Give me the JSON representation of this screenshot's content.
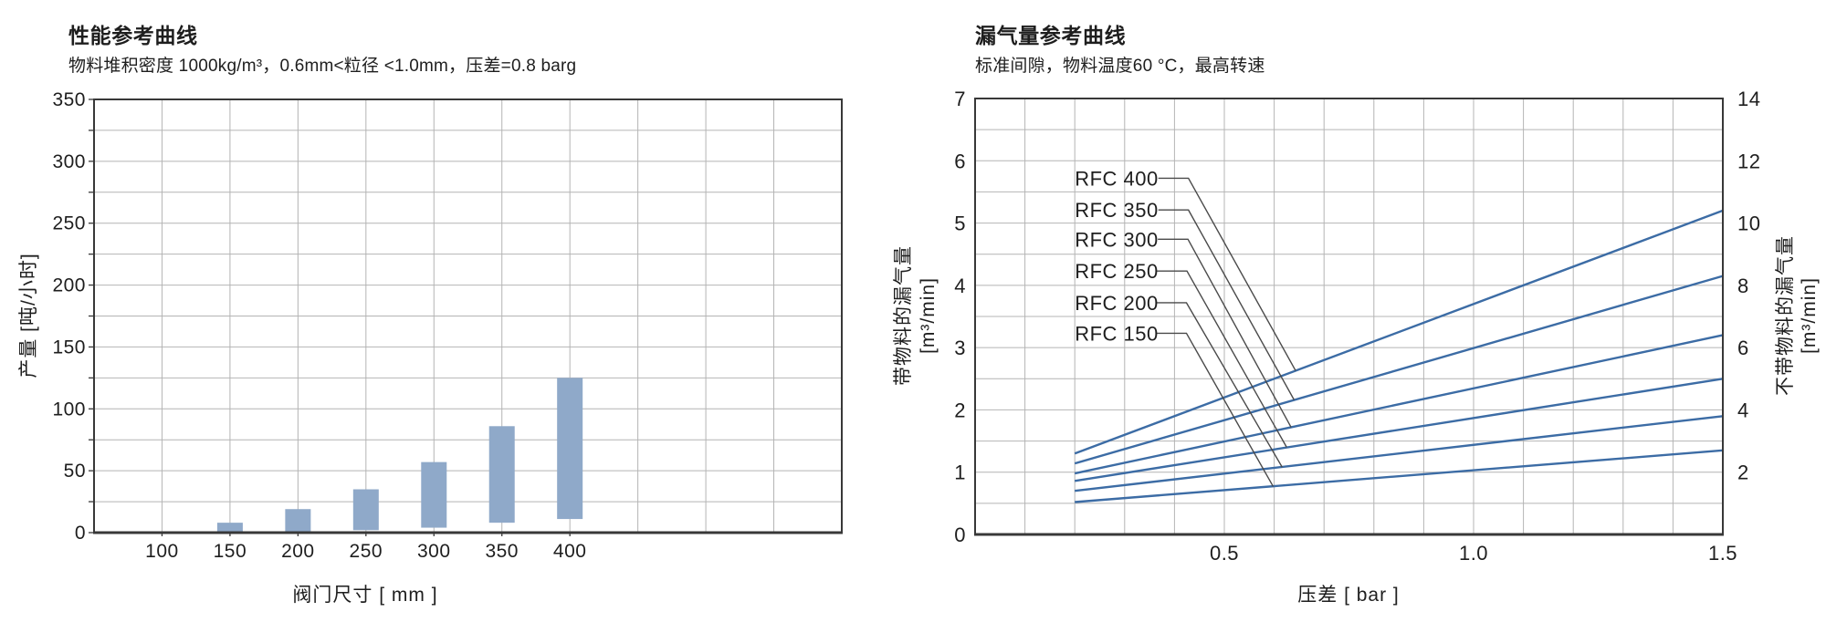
{
  "page": {
    "background": "#ffffff"
  },
  "colors": {
    "bar": "#8fa9c9",
    "curve": "#3c6ca5",
    "grid": "#b4b4b4",
    "axis": "#383838",
    "leader": "#4a4a4a",
    "text": "#1e1e1e"
  },
  "chart_data": [
    {
      "type": "bar",
      "title": "性能参考曲线",
      "subtitle": "物料堆积密度 1000kg/m³，0.6mm<粒径 <1.0mm，压差=0.8 barg",
      "xlabel": "阀门尺寸 [ mm ]",
      "ylabel": "产量 [吨/小时]",
      "x_ticks": [
        100,
        150,
        200,
        250,
        300,
        350,
        400
      ],
      "x_grid_extra": 4,
      "ylim": [
        0,
        350
      ],
      "y_ticks": [
        0,
        50,
        100,
        150,
        200,
        250,
        300,
        350
      ],
      "y_minor_step": 25,
      "grid_on": true,
      "bars": [
        {
          "x": 150,
          "min": 0.5,
          "max": 8
        },
        {
          "x": 200,
          "min": 1,
          "max": 19
        },
        {
          "x": 250,
          "min": 2,
          "max": 35
        },
        {
          "x": 300,
          "min": 4,
          "max": 57
        },
        {
          "x": 350,
          "min": 8,
          "max": 86
        },
        {
          "x": 400,
          "min": 11,
          "max": 125
        }
      ],
      "bar_value_unit": "吨/小时"
    },
    {
      "type": "line",
      "title": "漏气量参考曲线",
      "subtitle": "标准间隙，物料温度60 °C，最高转速",
      "xlabel": "压差 [ bar ]",
      "ylabel_left": "带物料的漏气量",
      "ylabel_left_unit": "[m³/min]",
      "ylabel_right": "不带物料的漏气量",
      "ylabel_right_unit": "[m³/min]",
      "xlim": [
        0,
        1.5
      ],
      "x_minor_step": 0.1,
      "x_ticks": [
        {
          "v": 0.5,
          "label": "0.5"
        },
        {
          "v": 1.0,
          "label": "1.0"
        },
        {
          "v": 1.5,
          "label": "1.5"
        }
      ],
      "ylim_left": [
        0,
        7
      ],
      "y_ticks_left": [
        0,
        1,
        2,
        3,
        4,
        5,
        6,
        7
      ],
      "ylim_right": [
        0,
        14
      ],
      "y_ticks_right": [
        2,
        4,
        6,
        8,
        10,
        12,
        14
      ],
      "y_minor_step": 0.5,
      "grid_on": true,
      "legend_position": "inside-top-left",
      "series": [
        {
          "name": "RFC 400",
          "points": [
            [
              0.2,
              1.3
            ],
            [
              1.5,
              5.2
            ]
          ],
          "label_y": 5.72,
          "elbow": [
            0.428,
            5.72
          ],
          "end": [
            0.643,
            2.63
          ]
        },
        {
          "name": "RFC 350",
          "points": [
            [
              0.2,
              1.14
            ],
            [
              1.5,
              4.15
            ]
          ],
          "label_y": 5.21,
          "elbow": [
            0.428,
            5.21
          ],
          "end": [
            0.64,
            2.16
          ]
        },
        {
          "name": "RFC 300",
          "points": [
            [
              0.2,
              0.98
            ],
            [
              1.5,
              3.2
            ]
          ],
          "label_y": 4.74,
          "elbow": [
            0.427,
            4.74
          ],
          "end": [
            0.634,
            1.72
          ]
        },
        {
          "name": "RFC 250",
          "points": [
            [
              0.2,
              0.86
            ],
            [
              1.5,
              2.5
            ]
          ],
          "label_y": 4.23,
          "elbow": [
            0.425,
            4.23
          ],
          "end": [
            0.625,
            1.4
          ]
        },
        {
          "name": "RFC 200",
          "points": [
            [
              0.2,
              0.7
            ],
            [
              1.5,
              1.9
            ]
          ],
          "label_y": 3.72,
          "elbow": [
            0.424,
            3.72
          ],
          "end": [
            0.616,
            1.08
          ]
        },
        {
          "name": "RFC 150",
          "points": [
            [
              0.2,
              0.52
            ],
            [
              1.5,
              1.35
            ]
          ],
          "label_y": 3.23,
          "elbow": [
            0.424,
            3.23
          ],
          "end": [
            0.598,
            0.77
          ]
        }
      ],
      "series_label_x": 0.2
    }
  ]
}
